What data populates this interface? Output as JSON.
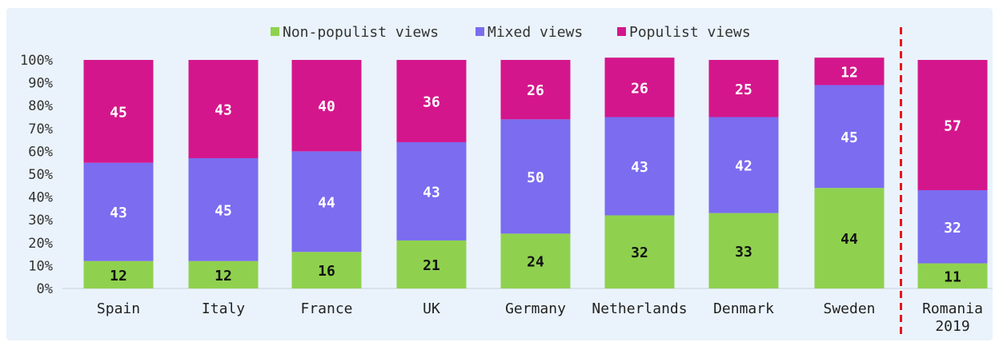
{
  "chart_data": {
    "type": "bar",
    "stacked": true,
    "categories": [
      "Spain",
      "Italy",
      "France",
      "UK",
      "Germany",
      "Netherlands",
      "Denmark",
      "Sweden",
      "Romania\n2019"
    ],
    "series": [
      {
        "name": "Non-populist views",
        "color": "#8fd14f",
        "values": [
          12,
          12,
          16,
          21,
          24,
          32,
          33,
          44,
          11
        ]
      },
      {
        "name": "Mixed views",
        "color": "#7b6cf0",
        "values": [
          43,
          45,
          44,
          43,
          50,
          43,
          42,
          45,
          32
        ]
      },
      {
        "name": "Populist views",
        "color": "#d4168c",
        "values": [
          45,
          43,
          40,
          36,
          26,
          26,
          25,
          12,
          57
        ]
      }
    ],
    "yticks": [
      "0%",
      "10%",
      "20%",
      "30%",
      "40%",
      "50%",
      "60%",
      "70%",
      "80%",
      "90%",
      "100%"
    ],
    "ylim": [
      0,
      100
    ],
    "legend_position": "top-center",
    "separator": {
      "before_category_index": 8,
      "style": "dashed",
      "color": "#e8141e"
    },
    "label_colors": {
      "Non-populist views": "#111111",
      "Mixed views": "#ffffff",
      "Populist views": "#ffffff"
    },
    "background": "#eaf3fb"
  }
}
